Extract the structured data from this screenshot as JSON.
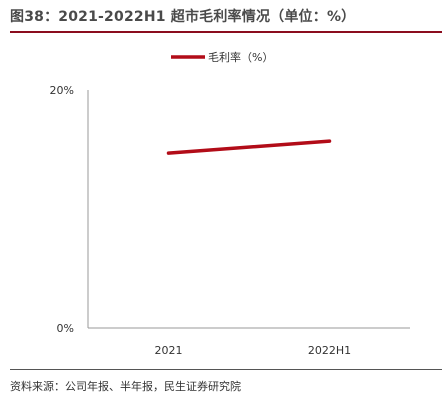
{
  "header": {
    "title": "图38：2021-2022H1 超市毛利率情况（单位：%）"
  },
  "footer": {
    "source": "资料来源：公司年报、半年报，民生证券研究院"
  },
  "chart_data": {
    "type": "line",
    "title": "图38：2021-2022H1 超市毛利率情况（单位：%）",
    "xlabel": "",
    "ylabel": "",
    "categories": [
      "2021",
      "2022H1"
    ],
    "y_tick_labels": [
      "0%",
      "20%"
    ],
    "y_ticks": [
      0,
      20
    ],
    "ylim": [
      0,
      20
    ],
    "grid": false,
    "legend_position": "top",
    "series": [
      {
        "name": "毛利率（%）",
        "values": [
          14.7,
          15.7
        ],
        "color": "#b20c18"
      }
    ]
  }
}
